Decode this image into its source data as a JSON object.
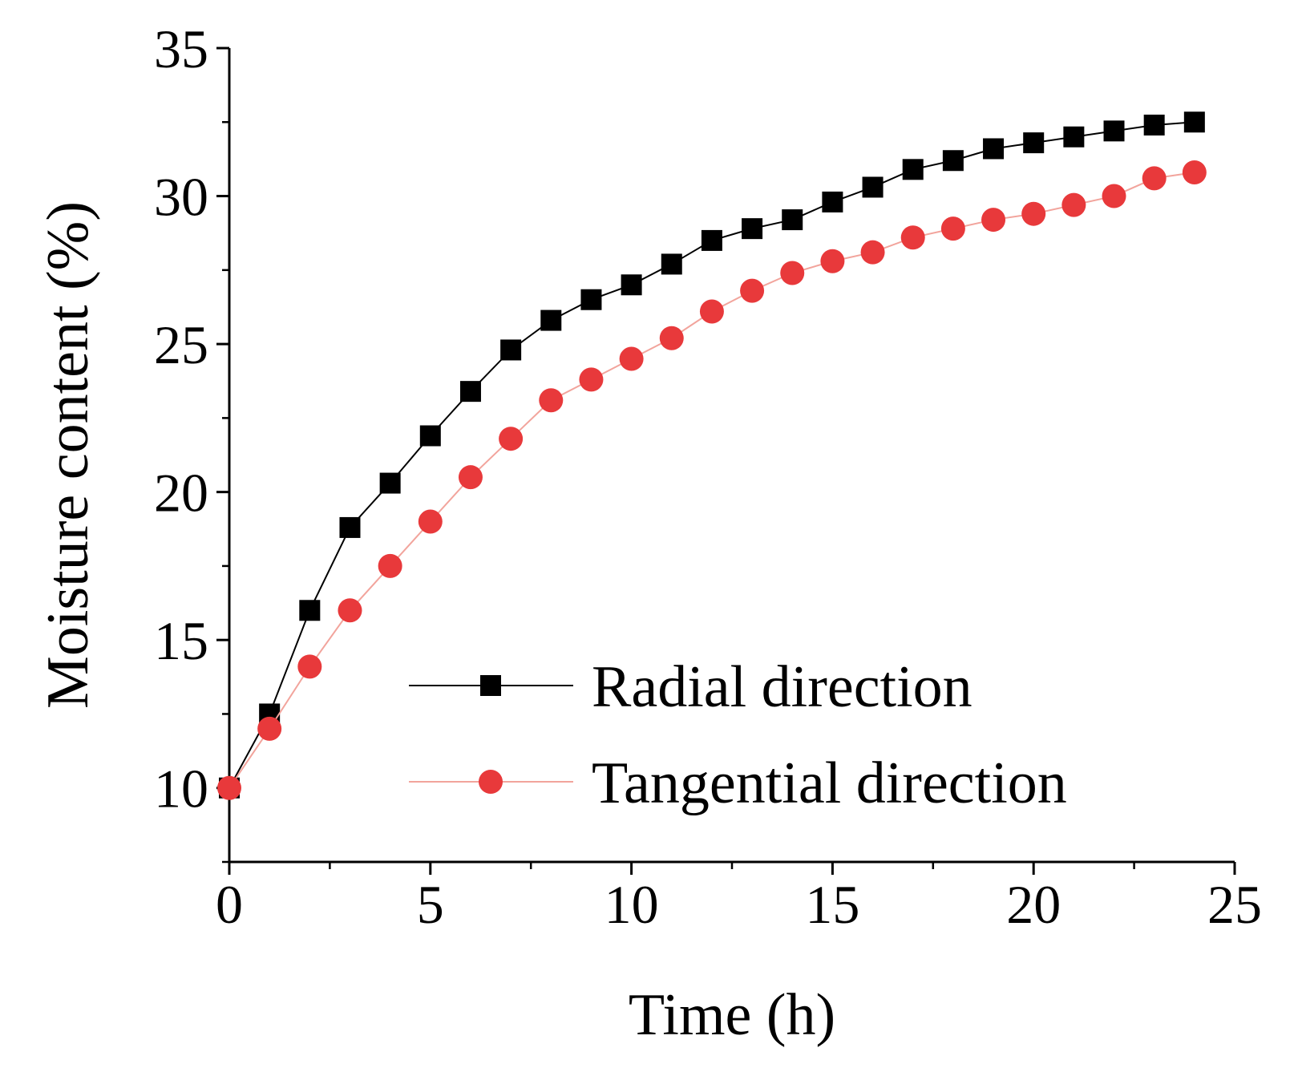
{
  "chart_data": {
    "type": "line",
    "xlabel": "Time (h)",
    "ylabel": "Moisture content (%)",
    "xlim": [
      0,
      25
    ],
    "ylim": [
      7.5,
      35
    ],
    "x_major_ticks": [
      0,
      5,
      10,
      15,
      20,
      25
    ],
    "x_minor_ticks": [
      2.5,
      7.5,
      12.5,
      17.5,
      22.5
    ],
    "y_major_ticks": [
      10,
      15,
      20,
      25,
      30,
      35
    ],
    "y_minor_ticks": [
      7.5,
      12.5,
      17.5,
      22.5,
      27.5,
      32.5
    ],
    "x_tick_labels": [
      "0",
      "5",
      "10",
      "15",
      "20",
      "25"
    ],
    "y_tick_labels": [
      "10",
      "15",
      "20",
      "25",
      "30",
      "35"
    ],
    "grid": false,
    "legend_position": "lower-right",
    "x": [
      0,
      1,
      2,
      3,
      4,
      5,
      6,
      7,
      8,
      9,
      10,
      11,
      12,
      13,
      14,
      15,
      16,
      17,
      18,
      19,
      20,
      21,
      22,
      23,
      24
    ],
    "series": [
      {
        "name": "Radial direction",
        "marker": "square",
        "color": "#000000",
        "values": [
          10.0,
          12.5,
          16.0,
          18.8,
          20.3,
          21.9,
          23.4,
          24.8,
          25.8,
          26.5,
          27.0,
          27.7,
          28.5,
          28.9,
          29.2,
          29.8,
          30.3,
          30.9,
          31.2,
          31.6,
          31.8,
          32.0,
          32.2,
          32.4,
          32.5
        ]
      },
      {
        "name": "Tangential direction",
        "marker": "circle",
        "color": "#e8393b",
        "line_color": "#f2a49c",
        "values": [
          10.0,
          12.0,
          14.1,
          16.0,
          17.5,
          19.0,
          20.5,
          21.8,
          23.1,
          23.8,
          24.5,
          25.2,
          26.1,
          26.8,
          27.4,
          27.8,
          28.1,
          28.6,
          28.9,
          29.2,
          29.4,
          29.7,
          30.0,
          30.6,
          30.8
        ]
      }
    ]
  }
}
